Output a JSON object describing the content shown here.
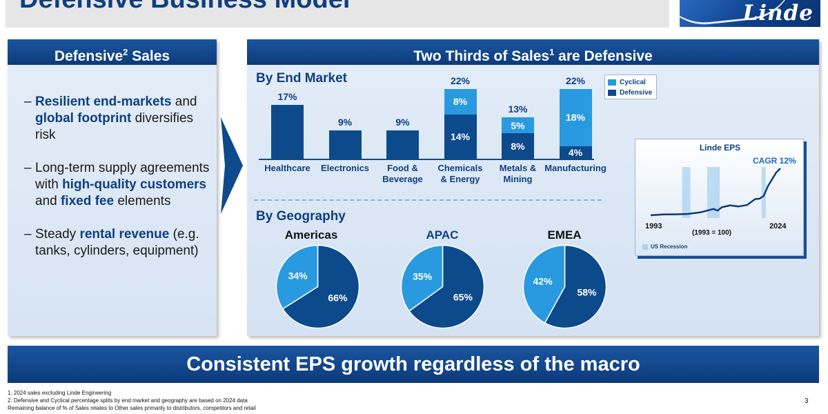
{
  "header": {
    "title": "Defensive Business Model",
    "logo_text": "Linde"
  },
  "left_panel": {
    "title_prefix": "Defensive",
    "title_sup": "2",
    "title_suffix": " Sales",
    "bullets": [
      {
        "dash": "–",
        "parts": [
          "",
          "Resilient end-markets",
          " and ",
          "global footprint",
          " diversifies risk"
        ]
      },
      {
        "dash": "–",
        "parts": [
          "Long-term supply agreements with ",
          "high-quality customers",
          " and ",
          "fixed fee",
          " elements"
        ]
      },
      {
        "dash": "–",
        "parts": [
          "Steady ",
          "rental revenue",
          " (e.g. tanks, cylinders, equipment)"
        ]
      }
    ]
  },
  "right_panel": {
    "title_prefix": "Two Thirds of Sales",
    "title_sup": "1",
    "title_suffix": " are Defensive",
    "end_market_title": "By End Market",
    "geography_title": "By Geography"
  },
  "chart_data": [
    {
      "type": "bar",
      "stacked": true,
      "title": "By End Market",
      "categories": [
        "Healthcare",
        "Electronics",
        "Food &\nBeverage",
        "Chemicals\n& Energy",
        "Metals &\nMining",
        "Manufacturing"
      ],
      "series": [
        {
          "name": "Defensive",
          "color": "#0c4a8c",
          "values": [
            17,
            9,
            9,
            14,
            8,
            4
          ],
          "labels": [
            "",
            "",
            "",
            "14%",
            "8%",
            "4%"
          ]
        },
        {
          "name": "Cyclical",
          "color": "#2a9ae0",
          "values": [
            0,
            0,
            0,
            8,
            5,
            18
          ],
          "labels": [
            "",
            "",
            "",
            "8%",
            "5%",
            "18%"
          ]
        }
      ],
      "totals": [
        "17%",
        "9%",
        "9%",
        "22%",
        "13%",
        "22%"
      ],
      "legend": [
        "Cyclical",
        "Defensive"
      ],
      "ylim": [
        0,
        22
      ]
    },
    {
      "type": "pie",
      "title": "Americas",
      "slices": [
        {
          "name": "Defensive",
          "value": 66,
          "label": "66%",
          "color": "#0c4a8c"
        },
        {
          "name": "Cyclical",
          "value": 34,
          "label": "34%",
          "color": "#2a9ae0"
        }
      ]
    },
    {
      "type": "pie",
      "title": "APAC",
      "slices": [
        {
          "name": "Defensive",
          "value": 65,
          "label": "65%",
          "color": "#0c4a8c"
        },
        {
          "name": "Cyclical",
          "value": 35,
          "label": "35%",
          "color": "#2a9ae0"
        }
      ]
    },
    {
      "type": "pie",
      "title": "EMEA",
      "slices": [
        {
          "name": "Defensive",
          "value": 58,
          "label": "58%",
          "color": "#0c4a8c"
        },
        {
          "name": "Cyclical",
          "value": 42,
          "label": "42%",
          "color": "#2a9ae0"
        }
      ]
    },
    {
      "type": "line",
      "title": "Linde EPS",
      "x": [
        1993,
        1996,
        1999,
        2002,
        2005,
        2008,
        2009,
        2010,
        2012,
        2014,
        2016,
        2018,
        2019,
        2020,
        2021,
        2022,
        2023,
        2024
      ],
      "y": [
        100,
        130,
        135,
        150,
        210,
        330,
        270,
        390,
        460,
        420,
        470,
        690,
        700,
        800,
        1150,
        1400,
        1650,
        1800
      ],
      "xlabel_start": "1993",
      "xlabel_end": "2024",
      "base_note": "(1993 = 100)",
      "annotation": "CAGR 12%",
      "recessions": [
        [
          2001,
          2002
        ],
        [
          2007,
          2009
        ],
        [
          2020,
          2020
        ]
      ],
      "recession_label": "US Recession"
    }
  ],
  "banner": {
    "text": "Consistent EPS growth regardless of the macro"
  },
  "footnotes": [
    "1. 2024 sales excluding Linde Engineering",
    "2. Defensive and Cyclical percentage splits by end market and geography are based on 2024 data",
    "Remaining balance of % of Sales relates to Other sales primarily to distributors, competitors and retail"
  ],
  "page_number": "3",
  "colors": {
    "navy": "#0e3f80",
    "defensive": "#0c4a8c",
    "cyclical": "#2a9ae0",
    "recession": "#a9d2f2"
  }
}
